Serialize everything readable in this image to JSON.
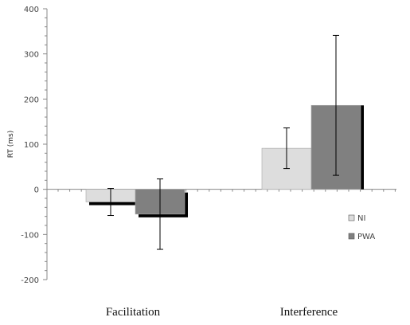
{
  "chart_data": {
    "type": "bar",
    "title": "",
    "xlabel": "",
    "ylabel": "RT (ms)",
    "categories": [
      "Facilitation",
      "Interference"
    ],
    "ylim": [
      -200,
      400
    ],
    "yticks": [
      -200,
      -100,
      0,
      100,
      200,
      300,
      400
    ],
    "ytick_labels": [
      "-200",
      "-100",
      "0",
      "100",
      "200",
      "300",
      "400"
    ],
    "minor_tick_step": 20,
    "grid": false,
    "error_bars": true,
    "bar_shadow": true,
    "legend_position": "right",
    "series": [
      {
        "name": "NI",
        "color": "#dddddd",
        "values": [
          -28,
          91
        ],
        "errors": [
          30,
          45
        ]
      },
      {
        "name": "PWA",
        "color": "#808080",
        "values": [
          -55,
          186
        ],
        "errors": [
          78,
          155
        ]
      }
    ]
  }
}
